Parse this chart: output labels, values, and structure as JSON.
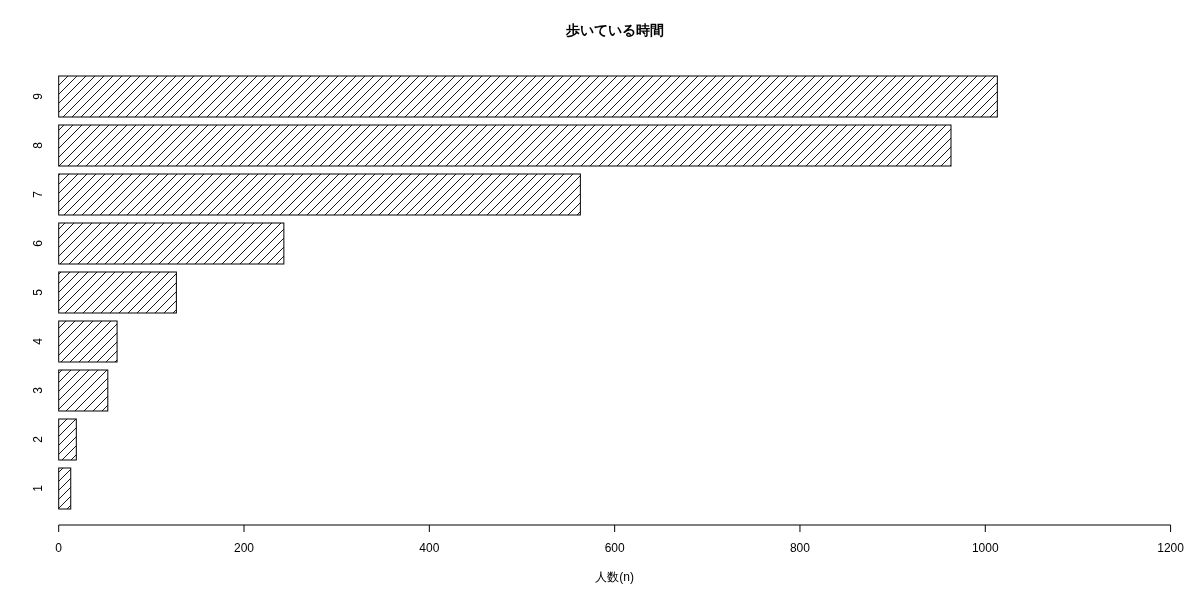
{
  "chart_data": {
    "type": "bar",
    "orientation": "horizontal",
    "title": "歩いている時間",
    "xlabel": "人数(n)",
    "categories": [
      "9",
      "8",
      "7",
      "6",
      "5",
      "4",
      "3",
      "2",
      "1"
    ],
    "values": [
      1013,
      963,
      563,
      243,
      127,
      63,
      53,
      19,
      13
    ],
    "color": "#000000",
    "xlim": [
      0,
      1200
    ],
    "xticks": [
      0,
      200,
      400,
      600,
      800,
      1000,
      1200
    ]
  }
}
